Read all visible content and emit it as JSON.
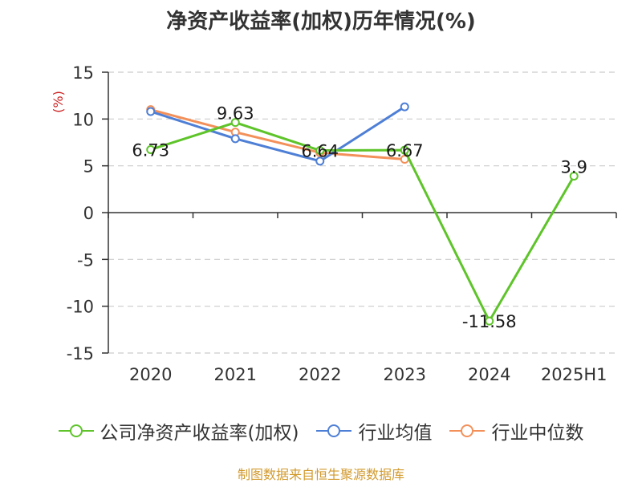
{
  "chart_data": {
    "type": "line",
    "title": "净资产收益率(加权)历年情况(%)",
    "ylabel": "(%)",
    "ylim": [
      -15,
      15
    ],
    "yticks": [
      15,
      10,
      5,
      0,
      -5,
      -10,
      -15
    ],
    "categories": [
      "2020",
      "2021",
      "2022",
      "2023",
      "2024",
      "2025H1"
    ],
    "grid": true,
    "legend_position": "bottom",
    "series": [
      {
        "name": "公司净资产收益率(加权)",
        "color": "#5ec42a",
        "values": [
          6.73,
          9.63,
          6.64,
          6.67,
          -11.58,
          3.9
        ],
        "data_labels": [
          "6.73",
          "9.63",
          "6.64",
          "6.67",
          "-11.58",
          "3.9"
        ]
      },
      {
        "name": "行业均值",
        "color": "#4e7fd6",
        "values": [
          10.8,
          7.9,
          5.5,
          11.3,
          null,
          null
        ]
      },
      {
        "name": "行业中位数",
        "color": "#f3905a",
        "values": [
          11.0,
          8.6,
          6.4,
          5.7,
          null,
          null
        ]
      }
    ]
  },
  "source_note": "制图数据来自恒生聚源数据库"
}
